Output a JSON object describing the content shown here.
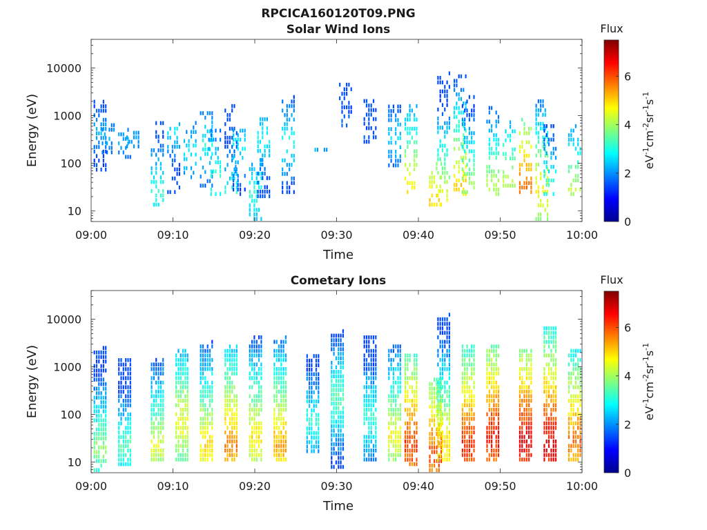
{
  "figure": {
    "title": "RPCICA160120T09.PNG"
  },
  "colorscale": "jet",
  "chart_data": [
    {
      "type": "heatmap",
      "title": "Solar Wind Ions",
      "xlabel": "Time",
      "ylabel": "Energy (eV)",
      "x_range": [
        "09:00",
        "10:00"
      ],
      "x_ticks": [
        "09:00",
        "09:10",
        "09:20",
        "09:30",
        "09:40",
        "09:50",
        "10:00"
      ],
      "y_scale": "log",
      "y_range": [
        6,
        40000
      ],
      "y_ticks": [
        10,
        100,
        1000,
        10000
      ],
      "y_ticklabels": [
        "10",
        "100",
        "1000",
        "10000"
      ],
      "colorbar": {
        "title": "Flux",
        "label": "eV-1cm-2sr-1s-1",
        "range": [
          0,
          7.5
        ],
        "ticks": [
          0,
          2,
          4,
          6
        ],
        "ticklabels": [
          "0",
          "2",
          "4",
          "6"
        ]
      },
      "columns": [
        {
          "t": "09:01",
          "lo": 65,
          "hi": 1900,
          "peak": 2.1,
          "peakE": 400
        },
        {
          "t": "09:02",
          "lo": 150,
          "hi": 550,
          "peak": 2.0,
          "peakE": 300
        },
        {
          "t": "09:04",
          "lo": 120,
          "hi": 500,
          "peak": 2.1,
          "peakE": 250
        },
        {
          "t": "09:05",
          "lo": 200,
          "hi": 400,
          "peak": 2.0,
          "peakE": 300
        },
        {
          "t": "09:08",
          "lo": 12,
          "hi": 650,
          "peak": 3.0,
          "peakE": 22
        },
        {
          "t": "09:10",
          "lo": 22,
          "hi": 600,
          "peak": 2.4,
          "peakE": 400
        },
        {
          "t": "09:12",
          "lo": 45,
          "hi": 600,
          "peak": 2.6,
          "peakE": 150
        },
        {
          "t": "09:14",
          "lo": 30,
          "hi": 1100,
          "peak": 2.8,
          "peakE": 200
        },
        {
          "t": "09:15",
          "lo": 20,
          "hi": 500,
          "peak": 3.1,
          "peakE": 40
        },
        {
          "t": "09:17",
          "lo": 22,
          "hi": 1600,
          "peak": 2.9,
          "peakE": 20
        },
        {
          "t": "09:18",
          "lo": 20,
          "hi": 500,
          "peak": 2.6,
          "peakE": 200
        },
        {
          "t": "09:20",
          "lo": 6,
          "hi": 120,
          "peak": 3.0,
          "peakE": 20
        },
        {
          "t": "09:21",
          "lo": 18,
          "hi": 800,
          "peak": 2.7,
          "peakE": 300
        },
        {
          "t": "09:24",
          "lo": 22,
          "hi": 2200,
          "peak": 2.8,
          "peakE": 250
        },
        {
          "t": "09:28",
          "lo": 170,
          "hi": 190,
          "peak": 2.0,
          "peakE": 180
        },
        {
          "t": "09:31",
          "lo": 550,
          "hi": 4800,
          "peak": 1.6,
          "peakE": 600
        },
        {
          "t": "09:34",
          "lo": 250,
          "hi": 2000,
          "peak": 1.4,
          "peakE": 300
        },
        {
          "t": "09:37",
          "lo": 80,
          "hi": 1500,
          "peak": 2.4,
          "peakE": 300
        },
        {
          "t": "09:39",
          "lo": 22,
          "hi": 1500,
          "peak": 4.7,
          "peakE": 25
        },
        {
          "t": "09:42",
          "lo": 12,
          "hi": 90,
          "peak": 4.8,
          "peakE": 15
        },
        {
          "t": "09:43",
          "lo": 12,
          "hi": 7000,
          "peak": 4.5,
          "peakE": 14
        },
        {
          "t": "09:45",
          "lo": 20,
          "hi": 7000,
          "peak": 4.9,
          "peakE": 30
        },
        {
          "t": "09:46",
          "lo": 22,
          "hi": 2200,
          "peak": 3.8,
          "peakE": 30
        },
        {
          "t": "09:49",
          "lo": 20,
          "hi": 1500,
          "peak": 4.0,
          "peakE": 30
        },
        {
          "t": "09:51",
          "lo": 30,
          "hi": 700,
          "peak": 4.0,
          "peakE": 40
        },
        {
          "t": "09:53",
          "lo": 22,
          "hi": 800,
          "peak": 5.6,
          "peakE": 30
        },
        {
          "t": "09:55",
          "lo": 6,
          "hi": 2000,
          "peak": 4.6,
          "peakE": 25
        },
        {
          "t": "09:56",
          "lo": 20,
          "hi": 600,
          "peak": 3.0,
          "peakE": 30
        },
        {
          "t": "09:59",
          "lo": 20,
          "hi": 600,
          "peak": 4.0,
          "peakE": 25
        }
      ]
    },
    {
      "type": "heatmap",
      "title": "Cometary Ions",
      "xlabel": "Time",
      "ylabel": "Energy (eV)",
      "x_range": [
        "09:00",
        "10:00"
      ],
      "x_ticks": [
        "09:00",
        "09:10",
        "09:20",
        "09:30",
        "09:40",
        "09:50",
        "10:00"
      ],
      "y_scale": "log",
      "y_range": [
        6,
        40000
      ],
      "y_ticks": [
        10,
        100,
        1000,
        10000
      ],
      "y_ticklabels": [
        "10",
        "100",
        "1000",
        "10000"
      ],
      "colorbar": {
        "title": "Flux",
        "label": "eV-1cm-2sr-1s-1",
        "range": [
          0,
          7.5
        ],
        "ticks": [
          0,
          2,
          4,
          6
        ],
        "ticklabels": [
          "0",
          "2",
          "4",
          "6"
        ]
      },
      "columns": [
        {
          "t": "09:01",
          "lo": 6,
          "hi": 2200,
          "peak": 3.8,
          "peakE": 18
        },
        {
          "t": "09:04",
          "lo": 8,
          "hi": 1400,
          "peak": 3.3,
          "peakE": 20
        },
        {
          "t": "09:08",
          "lo": 10,
          "hi": 1300,
          "peak": 4.3,
          "peakE": 20
        },
        {
          "t": "09:11",
          "lo": 10,
          "hi": 2200,
          "peak": 4.6,
          "peakE": 60
        },
        {
          "t": "09:14",
          "lo": 10,
          "hi": 3000,
          "peak": 4.9,
          "peakE": 20
        },
        {
          "t": "09:17",
          "lo": 10,
          "hi": 2500,
          "peak": 5.6,
          "peakE": 20
        },
        {
          "t": "09:20",
          "lo": 10,
          "hi": 3800,
          "peak": 4.8,
          "peakE": 30
        },
        {
          "t": "09:23",
          "lo": 10,
          "hi": 3500,
          "peak": 5.3,
          "peakE": 20
        },
        {
          "t": "09:27",
          "lo": 15,
          "hi": 1700,
          "peak": 3.1,
          "peakE": 60
        },
        {
          "t": "09:30",
          "lo": 7,
          "hi": 5000,
          "peak": 3.4,
          "peakE": 200
        },
        {
          "t": "09:34",
          "lo": 10,
          "hi": 4200,
          "peak": 3.2,
          "peakE": 80
        },
        {
          "t": "09:37",
          "lo": 10,
          "hi": 2500,
          "peak": 4.6,
          "peakE": 30
        },
        {
          "t": "09:39",
          "lo": 8,
          "hi": 1700,
          "peak": 6.2,
          "peakE": 20
        },
        {
          "t": "09:42",
          "lo": 6,
          "hi": 500,
          "peak": 6.0,
          "peakE": 12
        },
        {
          "t": "09:43",
          "lo": 10,
          "hi": 10500,
          "peak": 5.0,
          "peakE": 20
        },
        {
          "t": "09:46",
          "lo": 10,
          "hi": 2800,
          "peak": 6.3,
          "peakE": 20
        },
        {
          "t": "09:49",
          "lo": 10,
          "hi": 2500,
          "peak": 6.5,
          "peakE": 30
        },
        {
          "t": "09:53",
          "lo": 10,
          "hi": 2300,
          "peak": 6.7,
          "peakE": 25
        },
        {
          "t": "09:56",
          "lo": 10,
          "hi": 6600,
          "peak": 6.8,
          "peakE": 20
        },
        {
          "t": "09:59",
          "lo": 10,
          "hi": 2200,
          "peak": 5.8,
          "peakE": 25
        }
      ]
    }
  ]
}
